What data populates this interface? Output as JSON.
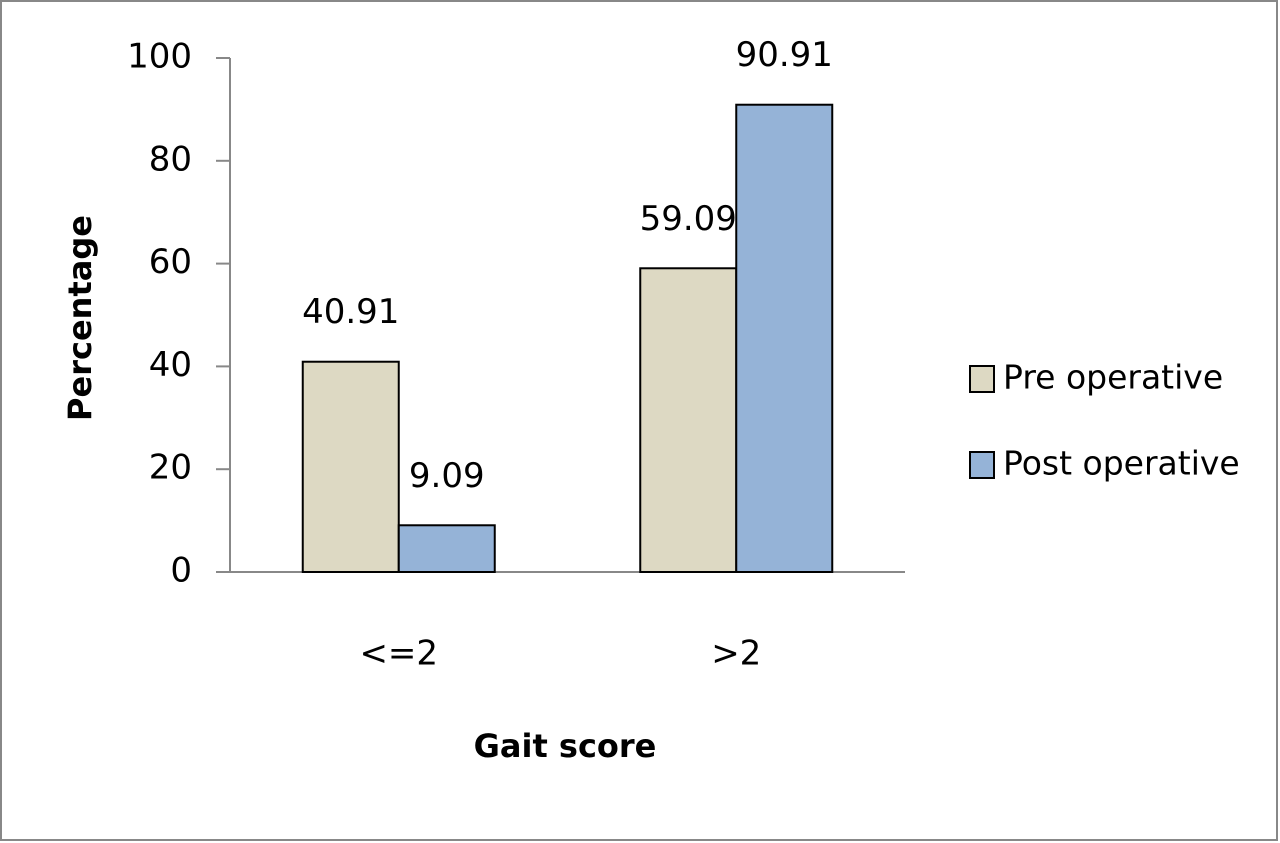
{
  "chart_data": {
    "type": "bar",
    "x_label": "Gait score",
    "y_label": "Percentage",
    "categories": [
      "<=2",
      ">2"
    ],
    "series": [
      {
        "name": "Pre operative",
        "color": "#ddd9c3",
        "values": [
          40.91,
          59.09
        ]
      },
      {
        "name": "Post operative",
        "color": "#95b3d7",
        "values": [
          9.09,
          90.91
        ]
      }
    ],
    "ylim": [
      0,
      100
    ],
    "yticks": [
      0,
      20,
      40,
      60,
      80,
      100
    ],
    "grid": false,
    "legend": "right"
  }
}
